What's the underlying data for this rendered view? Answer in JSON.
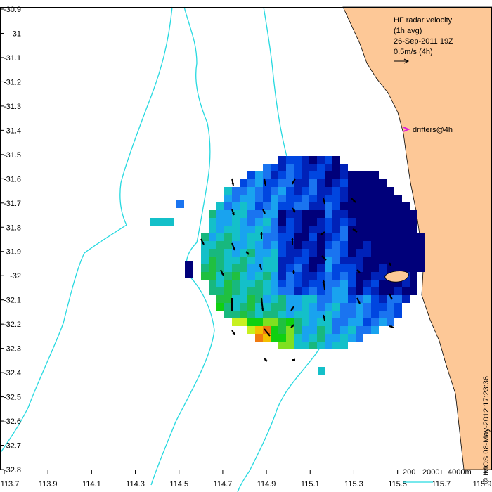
{
  "map": {
    "title_lines": [
      "HF radar velocity",
      "(1h avg)",
      "26-Sep-2011 19Z",
      "0.5m/s (4h)"
    ],
    "drifters_label": "drifters@4h",
    "x_ticks": [
      "113.7",
      "113.9",
      "114.1",
      "114.3",
      "114.5",
      "114.7",
      "114.9",
      "115.1",
      "115.3",
      "115.5",
      "115.7",
      "115.9"
    ],
    "y_ticks": [
      "-30.9",
      "-31",
      "-31.1",
      "-31.2",
      "-31.3",
      "-31.4",
      "-31.5",
      "-31.6",
      "-31.7",
      "-31.8",
      "-31.9",
      "-32",
      "-32.1",
      "-32.2",
      "-32.3",
      "-32.4",
      "-32.5",
      "-32.6",
      "-32.7",
      "-32.8"
    ],
    "x_range": [
      113.7,
      115.9
    ],
    "y_range": [
      -32.8,
      -30.9
    ],
    "isobath_labels": [
      "200",
      "2000",
      "4000m"
    ],
    "credit": "© IMOS 08-May-2012 17:23:36",
    "colors": {
      "land": "#fdc897",
      "isobath": "#26d9e0",
      "drifter": "#e01cd8",
      "scale": [
        "#00007a",
        "#0022b8",
        "#0046e0",
        "#1a74f0",
        "#19a3ef",
        "#14c0c9",
        "#18b87e",
        "#20c040",
        "#10d010",
        "#80e020",
        "#c8f020",
        "#f4c000",
        "#f07a10",
        "#d05010"
      ]
    },
    "velocity_scale_m_s": 0.5
  }
}
